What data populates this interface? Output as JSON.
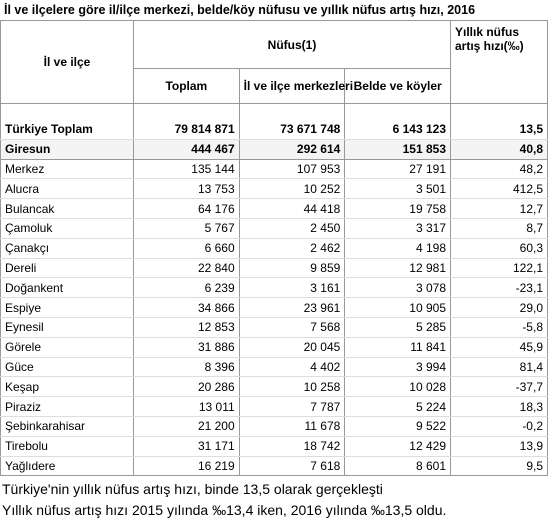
{
  "title": "İl ve ilçelere göre il/ilçe merkezi, belde/köy nüfusu ve yıllık nüfus artış hızı, 2016",
  "table": {
    "headers": {
      "district": "İl ve ilçe",
      "population": "Nüfus(1)",
      "total": "Toplam",
      "centers": "İl ve ilçe merkezleri",
      "villages": "Belde ve köyler",
      "growth": "Yıllık nüfus artış hızı(‰)"
    },
    "rows": [
      [
        "Türkiye Toplam",
        "79 814 871",
        "73 671 748",
        "6 143 123",
        "13,5"
      ],
      [
        "Giresun",
        "444 467",
        "292 614",
        "151 853",
        "40,8"
      ],
      [
        "Merkez",
        "135 144",
        "107 953",
        "27 191",
        "48,2"
      ],
      [
        "Alucra",
        "13 753",
        "10 252",
        "3 501",
        "412,5"
      ],
      [
        "Bulancak",
        "64 176",
        "44 418",
        "19 758",
        "12,7"
      ],
      [
        "Çamoluk",
        "5 767",
        "2 450",
        "3 317",
        "8,7"
      ],
      [
        "Çanakçı",
        "6 660",
        "2 462",
        "4 198",
        "60,3"
      ],
      [
        "Dereli",
        "22 840",
        "9 859",
        "12 981",
        "122,1"
      ],
      [
        "Doğankent",
        "6 239",
        "3 161",
        "3 078",
        "-23,1"
      ],
      [
        "Espiye",
        "34 866",
        "23 961",
        "10 905",
        "29,0"
      ],
      [
        "Eynesil",
        "12 853",
        "7 568",
        "5 285",
        "-5,8"
      ],
      [
        "Görele",
        "31 886",
        "20 045",
        "11 841",
        "45,9"
      ],
      [
        "Güce",
        "8 396",
        "4 402",
        "3 994",
        "81,4"
      ],
      [
        "Keşap",
        "20 286",
        "10 258",
        "10 028",
        "-37,7"
      ],
      [
        "Piraziz",
        "13 011",
        "7 787",
        "5 224",
        "18,3"
      ],
      [
        "Şebinkarahisar",
        "21 200",
        "11 678",
        "9 522",
        "-0,2"
      ],
      [
        "Tirebolu",
        "31 171",
        "18 742",
        "12 429",
        "13,9"
      ],
      [
        "Yağlıdere",
        "16 219",
        "7 618",
        "8 601",
        "9,5"
      ]
    ]
  },
  "notes": [
    "Türkiye'nin yıllık nüfus artış hızı, binde 13,5 olarak gerçekleşti",
    "Yıllık nüfus artış hızı 2015 yılında ‰13,4 iken, 2016 yılında ‰13,5 oldu."
  ]
}
